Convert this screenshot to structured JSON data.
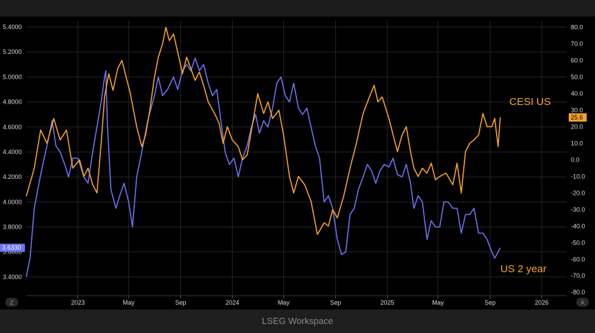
{
  "footer": {
    "brand": "LSEG Workspace"
  },
  "colors": {
    "cesi": "#f5a12c",
    "us2y": "#6b72f0",
    "background": "#000000",
    "grid": "#262626"
  },
  "chart_data": {
    "type": "line",
    "title": "",
    "x_range": [
      "2022-09",
      "2026-03"
    ],
    "x_tick_labels": [
      "2023",
      "May",
      "Sep",
      "2024",
      "May",
      "Sep",
      "2025",
      "May",
      "Sep",
      "2026"
    ],
    "x_tick_dates": [
      "2023-01",
      "2023-05",
      "2023-09",
      "2024-01",
      "2024-05",
      "2024-09",
      "2025-01",
      "2025-05",
      "2025-09",
      "2026-01"
    ],
    "left_axis": {
      "range": [
        3.25,
        5.45
      ],
      "ticks": [
        "5.4000",
        "5.2000",
        "5.0000",
        "4.8000",
        "4.6000",
        "4.4000",
        "4.2000",
        "4.0000",
        "3.8000",
        "3.6000",
        "3.4000"
      ]
    },
    "right_axis": {
      "range": [
        -82,
        84
      ],
      "ticks": [
        "80.0",
        "70.0",
        "60.0",
        "50.0",
        "40.0",
        "30.0",
        "20.0",
        "10.0",
        "0.0",
        "-10.0",
        "-20.0",
        "-30.0",
        "-40.0",
        "-50.0",
        "-60.0",
        "-70.0",
        "-80.0"
      ]
    },
    "grid": true,
    "series": [
      {
        "name": "CESI US",
        "axis": "right",
        "last_value_label": "25.6",
        "points": [
          [
            "2022-09-01",
            -22
          ],
          [
            "2022-09-20",
            -5
          ],
          [
            "2022-10-05",
            18
          ],
          [
            "2022-10-20",
            10
          ],
          [
            "2022-11-05",
            25
          ],
          [
            "2022-11-20",
            12
          ],
          [
            "2022-12-05",
            18
          ],
          [
            "2022-12-20",
            -5
          ],
          [
            "2023-01-05",
            0
          ],
          [
            "2023-01-15",
            -10
          ],
          [
            "2023-01-25",
            -5
          ],
          [
            "2023-02-05",
            -15
          ],
          [
            "2023-02-15",
            -20
          ],
          [
            "2023-02-25",
            10
          ],
          [
            "2023-03-05",
            38
          ],
          [
            "2023-03-15",
            52
          ],
          [
            "2023-03-25",
            42
          ],
          [
            "2023-04-05",
            55
          ],
          [
            "2023-04-15",
            60
          ],
          [
            "2023-04-25",
            50
          ],
          [
            "2023-05-05",
            40
          ],
          [
            "2023-05-20",
            20
          ],
          [
            "2023-06-01",
            8
          ],
          [
            "2023-06-10",
            15
          ],
          [
            "2023-06-20",
            30
          ],
          [
            "2023-07-01",
            50
          ],
          [
            "2023-07-10",
            62
          ],
          [
            "2023-07-20",
            70
          ],
          [
            "2023-07-28",
            80
          ],
          [
            "2023-08-05",
            72
          ],
          [
            "2023-08-15",
            76
          ],
          [
            "2023-08-25",
            65
          ],
          [
            "2023-09-05",
            52
          ],
          [
            "2023-09-15",
            62
          ],
          [
            "2023-09-25",
            55
          ],
          [
            "2023-10-05",
            48
          ],
          [
            "2023-10-15",
            53
          ],
          [
            "2023-10-25",
            45
          ],
          [
            "2023-11-05",
            35
          ],
          [
            "2023-11-20",
            28
          ],
          [
            "2023-12-01",
            22
          ],
          [
            "2023-12-10",
            10
          ],
          [
            "2023-12-20",
            20
          ],
          [
            "2024-01-01",
            12
          ],
          [
            "2024-01-15",
            8
          ],
          [
            "2024-01-25",
            0
          ],
          [
            "2024-02-05",
            3
          ],
          [
            "2024-02-20",
            25
          ],
          [
            "2024-03-01",
            40
          ],
          [
            "2024-03-15",
            28
          ],
          [
            "2024-03-25",
            35
          ],
          [
            "2024-04-05",
            25
          ],
          [
            "2024-04-20",
            30
          ],
          [
            "2024-05-01",
            15
          ],
          [
            "2024-05-15",
            -10
          ],
          [
            "2024-05-25",
            -20
          ],
          [
            "2024-06-05",
            -10
          ],
          [
            "2024-06-20",
            -15
          ],
          [
            "2024-07-05",
            -25
          ],
          [
            "2024-07-20",
            -45
          ],
          [
            "2024-08-05",
            -38
          ],
          [
            "2024-08-15",
            -40
          ],
          [
            "2024-08-25",
            -30
          ],
          [
            "2024-09-05",
            -35
          ],
          [
            "2024-09-20",
            -22
          ],
          [
            "2024-10-05",
            -5
          ],
          [
            "2024-10-20",
            10
          ],
          [
            "2024-11-05",
            28
          ],
          [
            "2024-11-20",
            38
          ],
          [
            "2024-12-01",
            45
          ],
          [
            "2024-12-10",
            35
          ],
          [
            "2024-12-20",
            38
          ],
          [
            "2025-01-05",
            25
          ],
          [
            "2025-01-15",
            15
          ],
          [
            "2025-01-25",
            5
          ],
          [
            "2025-02-05",
            15
          ],
          [
            "2025-02-15",
            20
          ],
          [
            "2025-02-25",
            5
          ],
          [
            "2025-03-05",
            -5
          ],
          [
            "2025-03-15",
            -10
          ],
          [
            "2025-03-25",
            -5
          ],
          [
            "2025-04-05",
            -8
          ],
          [
            "2025-04-15",
            -2
          ],
          [
            "2025-04-25",
            -12
          ],
          [
            "2025-05-05",
            -10
          ],
          [
            "2025-05-20",
            -8
          ],
          [
            "2025-06-05",
            -15
          ],
          [
            "2025-06-15",
            -2
          ],
          [
            "2025-06-25",
            -20
          ],
          [
            "2025-07-05",
            5
          ],
          [
            "2025-07-15",
            10
          ],
          [
            "2025-07-25",
            12
          ],
          [
            "2025-08-05",
            15
          ],
          [
            "2025-08-15",
            28
          ],
          [
            "2025-08-25",
            20
          ],
          [
            "2025-09-05",
            20
          ],
          [
            "2025-09-12",
            25
          ],
          [
            "2025-09-20",
            8
          ],
          [
            "2025-09-25",
            25.6
          ]
        ]
      },
      {
        "name": "US 2 year",
        "axis": "left",
        "last_value_label": "3.6330",
        "points": [
          [
            "2022-09-01",
            3.4
          ],
          [
            "2022-09-10",
            3.55
          ],
          [
            "2022-09-20",
            3.95
          ],
          [
            "2022-10-01",
            4.15
          ],
          [
            "2022-10-10",
            4.3
          ],
          [
            "2022-10-20",
            4.45
          ],
          [
            "2022-11-01",
            4.65
          ],
          [
            "2022-11-10",
            4.45
          ],
          [
            "2022-11-20",
            4.4
          ],
          [
            "2022-12-01",
            4.3
          ],
          [
            "2022-12-10",
            4.2
          ],
          [
            "2022-12-20",
            4.35
          ],
          [
            "2023-01-01",
            4.35
          ],
          [
            "2023-01-15",
            4.2
          ],
          [
            "2023-01-25",
            4.15
          ],
          [
            "2023-02-05",
            4.4
          ],
          [
            "2023-02-15",
            4.6
          ],
          [
            "2023-02-25",
            4.8
          ],
          [
            "2023-03-05",
            5.0
          ],
          [
            "2023-03-08",
            5.05
          ],
          [
            "2023-03-12",
            4.6
          ],
          [
            "2023-03-20",
            4.1
          ],
          [
            "2023-04-01",
            3.95
          ],
          [
            "2023-04-10",
            4.05
          ],
          [
            "2023-04-20",
            4.15
          ],
          [
            "2023-05-01",
            4.0
          ],
          [
            "2023-05-10",
            3.8
          ],
          [
            "2023-05-20",
            4.2
          ],
          [
            "2023-06-01",
            4.4
          ],
          [
            "2023-06-15",
            4.65
          ],
          [
            "2023-07-01",
            4.85
          ],
          [
            "2023-07-10",
            5.0
          ],
          [
            "2023-07-20",
            4.85
          ],
          [
            "2023-08-01",
            4.9
          ],
          [
            "2023-08-15",
            5.0
          ],
          [
            "2023-08-25",
            4.9
          ],
          [
            "2023-09-05",
            5.05
          ],
          [
            "2023-09-15",
            5.1
          ],
          [
            "2023-09-25",
            5.05
          ],
          [
            "2023-10-05",
            5.15
          ],
          [
            "2023-10-15",
            5.05
          ],
          [
            "2023-10-25",
            5.1
          ],
          [
            "2023-11-05",
            4.95
          ],
          [
            "2023-11-15",
            4.85
          ],
          [
            "2023-11-25",
            4.9
          ],
          [
            "2023-12-05",
            4.65
          ],
          [
            "2023-12-15",
            4.4
          ],
          [
            "2023-12-25",
            4.3
          ],
          [
            "2024-01-05",
            4.35
          ],
          [
            "2024-01-15",
            4.2
          ],
          [
            "2024-01-25",
            4.35
          ],
          [
            "2024-02-05",
            4.45
          ],
          [
            "2024-02-15",
            4.6
          ],
          [
            "2024-02-25",
            4.7
          ],
          [
            "2024-03-05",
            4.55
          ],
          [
            "2024-03-15",
            4.65
          ],
          [
            "2024-03-25",
            4.6
          ],
          [
            "2024-04-05",
            4.75
          ],
          [
            "2024-04-15",
            4.95
          ],
          [
            "2024-04-25",
            5.0
          ],
          [
            "2024-05-05",
            4.85
          ],
          [
            "2024-05-15",
            4.8
          ],
          [
            "2024-05-25",
            4.95
          ],
          [
            "2024-06-05",
            4.75
          ],
          [
            "2024-06-15",
            4.7
          ],
          [
            "2024-06-25",
            4.75
          ],
          [
            "2024-07-05",
            4.6
          ],
          [
            "2024-07-15",
            4.45
          ],
          [
            "2024-07-25",
            4.35
          ],
          [
            "2024-08-05",
            4.0
          ],
          [
            "2024-08-15",
            4.05
          ],
          [
            "2024-08-25",
            3.95
          ],
          [
            "2024-09-05",
            3.7
          ],
          [
            "2024-09-15",
            3.58
          ],
          [
            "2024-09-25",
            3.6
          ],
          [
            "2024-10-05",
            3.9
          ],
          [
            "2024-10-15",
            3.95
          ],
          [
            "2024-10-25",
            4.1
          ],
          [
            "2024-11-05",
            4.2
          ],
          [
            "2024-11-15",
            4.3
          ],
          [
            "2024-11-25",
            4.25
          ],
          [
            "2024-12-05",
            4.15
          ],
          [
            "2024-12-15",
            4.25
          ],
          [
            "2024-12-25",
            4.3
          ],
          [
            "2025-01-05",
            4.28
          ],
          [
            "2025-01-15",
            4.35
          ],
          [
            "2025-01-25",
            4.22
          ],
          [
            "2025-02-05",
            4.2
          ],
          [
            "2025-02-15",
            4.3
          ],
          [
            "2025-02-25",
            4.15
          ],
          [
            "2025-03-05",
            3.95
          ],
          [
            "2025-03-15",
            4.05
          ],
          [
            "2025-03-25",
            4.0
          ],
          [
            "2025-04-05",
            3.7
          ],
          [
            "2025-04-15",
            3.85
          ],
          [
            "2025-04-25",
            3.8
          ],
          [
            "2025-05-05",
            3.8
          ],
          [
            "2025-05-15",
            4.0
          ],
          [
            "2025-05-25",
            4.0
          ],
          [
            "2025-06-05",
            3.95
          ],
          [
            "2025-06-15",
            3.95
          ],
          [
            "2025-06-25",
            3.75
          ],
          [
            "2025-07-05",
            3.9
          ],
          [
            "2025-07-15",
            3.9
          ],
          [
            "2025-07-25",
            3.95
          ],
          [
            "2025-08-05",
            3.75
          ],
          [
            "2025-08-15",
            3.75
          ],
          [
            "2025-08-25",
            3.7
          ],
          [
            "2025-09-05",
            3.6
          ],
          [
            "2025-09-12",
            3.55
          ],
          [
            "2025-09-20",
            3.6
          ],
          [
            "2025-09-25",
            3.633
          ]
        ]
      }
    ],
    "annotations": [
      {
        "text": "CESI US",
        "series": "CESI US"
      },
      {
        "text": "US 2 year",
        "series": "US 2 year"
      }
    ],
    "corner_labels": {
      "left": "Z",
      "right": "A"
    }
  }
}
